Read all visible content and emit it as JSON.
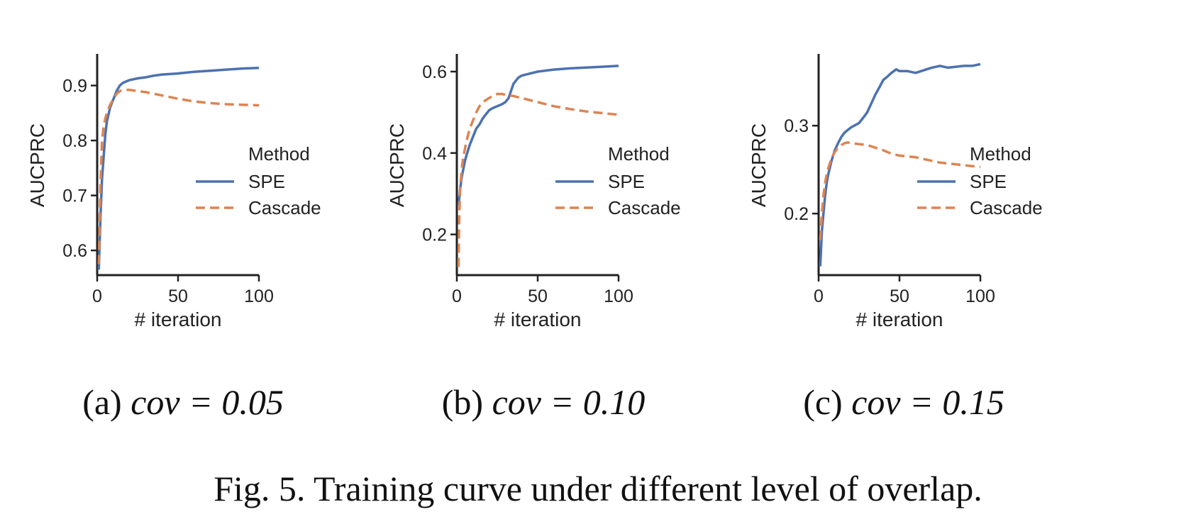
{
  "chart_data": [
    {
      "type": "line",
      "xlabel": "# iteration",
      "ylabel": "AUCPRC",
      "xlim": [
        0,
        100
      ],
      "ylim": [
        0.555,
        0.955
      ],
      "xticks": [
        0,
        50,
        100
      ],
      "yticks": [
        0.6,
        0.7,
        0.8,
        0.9
      ],
      "ytick_labels": [
        "0.6",
        "0.7",
        "0.8",
        "0.9"
      ],
      "legend": {
        "title": "Method",
        "placement": "center-right"
      },
      "series": [
        {
          "name": "SPE",
          "color": "#4c72b0",
          "style": "solid",
          "x": [
            1,
            2,
            3,
            4,
            5,
            6,
            8,
            10,
            12,
            14,
            16,
            20,
            25,
            30,
            35,
            40,
            50,
            60,
            70,
            80,
            90,
            100
          ],
          "y": [
            0.565,
            0.66,
            0.73,
            0.77,
            0.81,
            0.835,
            0.86,
            0.875,
            0.89,
            0.9,
            0.905,
            0.91,
            0.913,
            0.915,
            0.918,
            0.92,
            0.922,
            0.925,
            0.927,
            0.929,
            0.931,
            0.932
          ]
        },
        {
          "name": "Cascade",
          "color": "#dd8452",
          "style": "dashed",
          "x": [
            1,
            2,
            3,
            4,
            5,
            6,
            8,
            10,
            12,
            14,
            16,
            20,
            25,
            30,
            35,
            40,
            50,
            60,
            70,
            80,
            90,
            100
          ],
          "y": [
            0.575,
            0.72,
            0.8,
            0.825,
            0.84,
            0.85,
            0.865,
            0.875,
            0.885,
            0.89,
            0.892,
            0.892,
            0.89,
            0.888,
            0.885,
            0.882,
            0.876,
            0.871,
            0.868,
            0.866,
            0.865,
            0.864
          ]
        }
      ]
    },
    {
      "type": "line",
      "xlabel": "# iteration",
      "ylabel": "AUCPRC",
      "xlim": [
        0,
        100
      ],
      "ylim": [
        0.1,
        0.64
      ],
      "xticks": [
        0,
        50,
        100
      ],
      "yticks": [
        0.2,
        0.4,
        0.6
      ],
      "ytick_labels": [
        "0.2",
        "0.4",
        "0.6"
      ],
      "legend": {
        "title": "Method",
        "placement": "center-right"
      },
      "series": [
        {
          "name": "SPE",
          "color": "#4c72b0",
          "style": "solid",
          "x": [
            1,
            2,
            3,
            4,
            5,
            6,
            8,
            10,
            12,
            14,
            16,
            18,
            20,
            22,
            25,
            28,
            30,
            32,
            35,
            38,
            40,
            45,
            50,
            60,
            70,
            80,
            90,
            100
          ],
          "y": [
            0.27,
            0.31,
            0.34,
            0.36,
            0.38,
            0.395,
            0.42,
            0.44,
            0.46,
            0.47,
            0.485,
            0.495,
            0.505,
            0.51,
            0.515,
            0.52,
            0.525,
            0.535,
            0.57,
            0.585,
            0.59,
            0.595,
            0.6,
            0.605,
            0.608,
            0.61,
            0.612,
            0.614
          ]
        },
        {
          "name": "Cascade",
          "color": "#dd8452",
          "style": "dashed",
          "x": [
            1,
            1.5,
            2,
            3,
            4,
            5,
            6,
            8,
            10,
            12,
            14,
            16,
            18,
            20,
            22,
            25,
            28,
            30,
            35,
            40,
            50,
            60,
            70,
            80,
            90,
            100
          ],
          "y": [
            0.12,
            0.24,
            0.31,
            0.36,
            0.39,
            0.41,
            0.43,
            0.46,
            0.48,
            0.5,
            0.515,
            0.525,
            0.53,
            0.535,
            0.54,
            0.545,
            0.545,
            0.543,
            0.54,
            0.535,
            0.525,
            0.515,
            0.508,
            0.502,
            0.498,
            0.494
          ]
        }
      ]
    },
    {
      "type": "line",
      "xlabel": "# iteration",
      "ylabel": "AUCPRC",
      "xlim": [
        0,
        100
      ],
      "ylim": [
        0.13,
        0.38
      ],
      "xticks": [
        0,
        50,
        100
      ],
      "yticks": [
        0.2,
        0.3
      ],
      "ytick_labels": [
        "0.2",
        "0.3"
      ],
      "legend": {
        "title": "Method",
        "placement": "center-right"
      },
      "series": [
        {
          "name": "SPE",
          "color": "#4c72b0",
          "style": "solid",
          "x": [
            1,
            2,
            3,
            4,
            5,
            6,
            8,
            10,
            12,
            14,
            16,
            18,
            20,
            22,
            25,
            28,
            30,
            32,
            35,
            38,
            40,
            42,
            45,
            48,
            50,
            55,
            60,
            65,
            70,
            75,
            80,
            85,
            90,
            95,
            100
          ],
          "y": [
            0.14,
            0.18,
            0.2,
            0.22,
            0.235,
            0.245,
            0.26,
            0.272,
            0.28,
            0.287,
            0.292,
            0.295,
            0.298,
            0.3,
            0.303,
            0.31,
            0.315,
            0.323,
            0.335,
            0.345,
            0.352,
            0.355,
            0.36,
            0.364,
            0.362,
            0.362,
            0.36,
            0.363,
            0.366,
            0.368,
            0.366,
            0.367,
            0.368,
            0.368,
            0.37
          ]
        },
        {
          "name": "Cascade",
          "color": "#dd8452",
          "style": "dashed",
          "x": [
            1,
            2,
            3,
            4,
            5,
            6,
            8,
            10,
            12,
            14,
            16,
            18,
            20,
            25,
            30,
            35,
            40,
            45,
            50,
            55,
            60,
            65,
            70,
            75,
            80,
            85,
            90,
            95,
            100
          ],
          "y": [
            0.17,
            0.2,
            0.22,
            0.235,
            0.245,
            0.252,
            0.263,
            0.27,
            0.275,
            0.278,
            0.28,
            0.281,
            0.28,
            0.279,
            0.278,
            0.275,
            0.272,
            0.268,
            0.266,
            0.265,
            0.264,
            0.262,
            0.26,
            0.258,
            0.257,
            0.256,
            0.255,
            0.254,
            0.253
          ]
        }
      ]
    }
  ],
  "subcaptions": [
    {
      "label": "(a)",
      "math": "cov = 0.05"
    },
    {
      "label": "(b)",
      "math": "cov = 0.10"
    },
    {
      "label": "(c)",
      "math": "cov = 0.15"
    }
  ],
  "figure_caption": "Fig. 5.  Training curve under different level of overlap."
}
